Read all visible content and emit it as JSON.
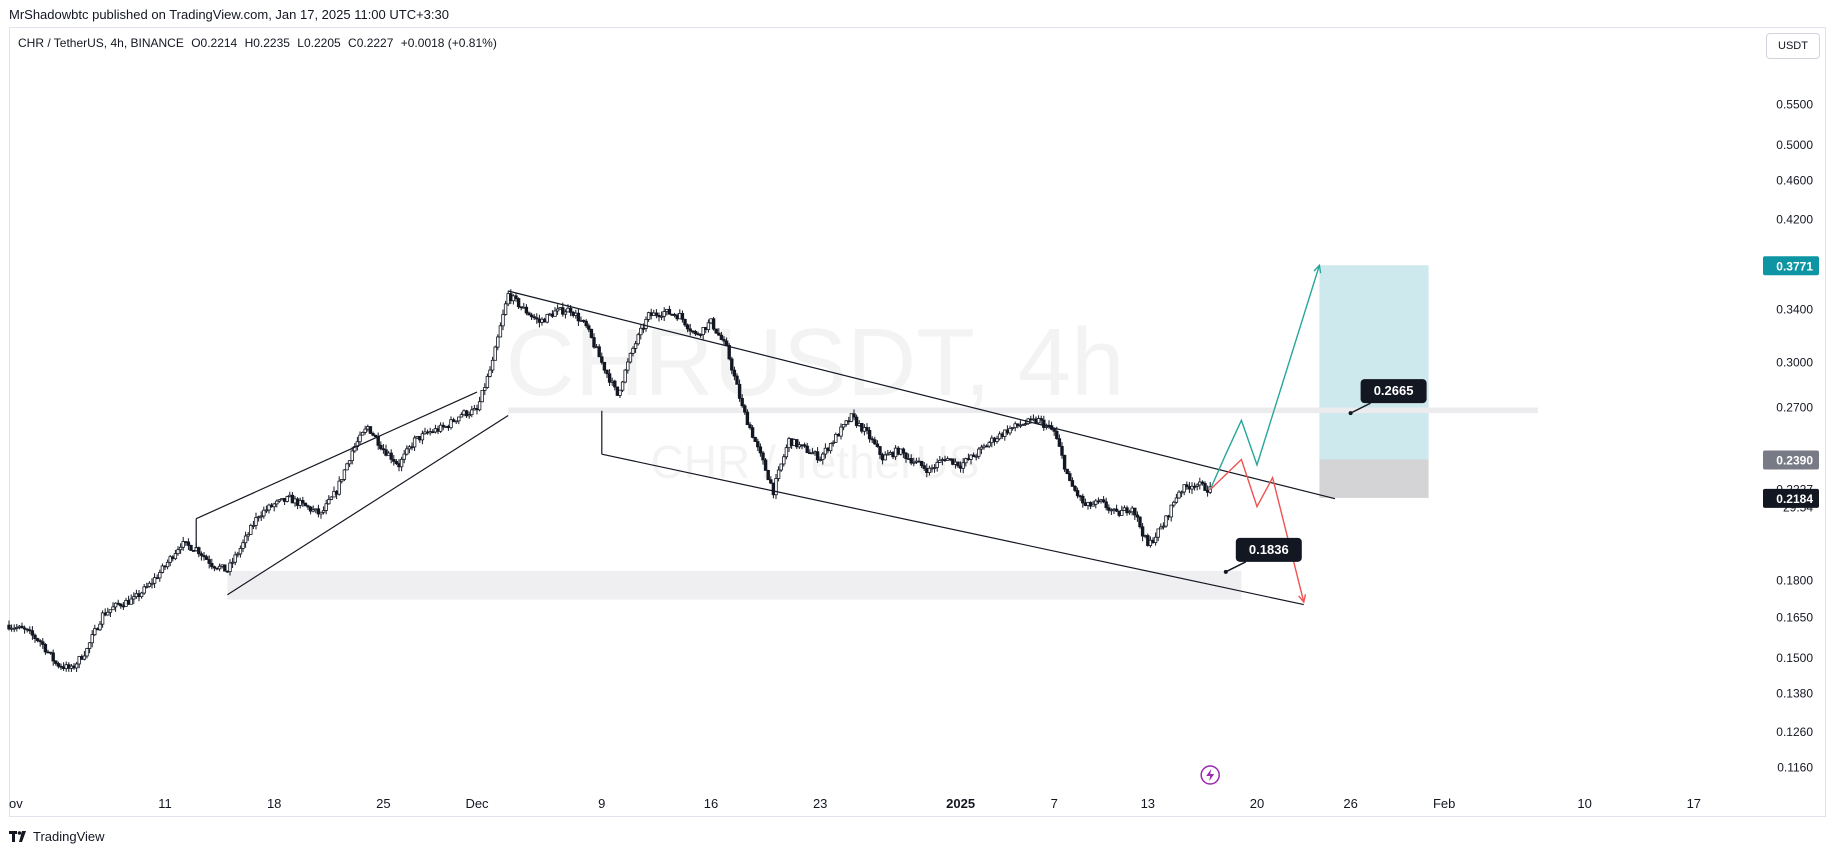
{
  "header": {
    "credit": "MrShadowbtc published on TradingView.com, Jan 17, 2025 11:00 UTC+3:30"
  },
  "legend": {
    "symbol": "CHR / TetherUS, 4h, BINANCE",
    "open": "O0.2214",
    "high": "H0.2235",
    "low": "L0.2205",
    "close": "C0.2227",
    "change": "+0.0018 (+0.81%)"
  },
  "currency_button": "USDT",
  "watermark": {
    "main": "CHRUSDT, 4h",
    "sub": "CHR / TetherUS"
  },
  "footer": {
    "brand": "TradingView"
  },
  "colors": {
    "candle": "#131722",
    "target_zone": "#cde9ee",
    "stop_zone": "#d4d4d6",
    "support_zone": "#efeff1",
    "bull_path": "#26a69a",
    "bear_path": "#f05151",
    "target_tag": "#0e95a3",
    "level_tag": "#787b86",
    "price_tag": "#131722"
  },
  "chart_data": {
    "type": "candlestick",
    "instrument": "CHR / TetherUS, 4h, BINANCE",
    "y_scale": "log",
    "ylim": [
      0.11,
      0.64
    ],
    "x_ticks": [
      {
        "label": "ov",
        "date": "2024-11-01"
      },
      {
        "label": "11",
        "date": "2024-11-11"
      },
      {
        "label": "18",
        "date": "2024-11-18"
      },
      {
        "label": "25",
        "date": "2024-11-25"
      },
      {
        "label": "Dec",
        "date": "2024-12-01"
      },
      {
        "label": "9",
        "date": "2024-12-09"
      },
      {
        "label": "16",
        "date": "2024-12-16"
      },
      {
        "label": "23",
        "date": "2024-12-23"
      },
      {
        "label": "2025",
        "date": "2025-01-01"
      },
      {
        "label": "7",
        "date": "2025-01-07"
      },
      {
        "label": "13",
        "date": "2025-01-13"
      },
      {
        "label": "20",
        "date": "2025-01-20"
      },
      {
        "label": "26",
        "date": "2025-01-26"
      },
      {
        "label": "Feb",
        "date": "2025-02-01"
      },
      {
        "label": "10",
        "date": "2025-02-10"
      },
      {
        "label": "17",
        "date": "2025-02-17"
      }
    ],
    "y_ticks": [
      "0.5500",
      "0.5000",
      "0.4600",
      "0.4200",
      "0.3400",
      "0.3000",
      "0.2700",
      "0.1800",
      "0.1650",
      "0.1500",
      "0.1380",
      "0.1260",
      "0.1160"
    ],
    "price_tags": [
      {
        "label": "0.3771",
        "value": 0.3771,
        "kind": "target"
      },
      {
        "label": "0.2390",
        "value": 0.239,
        "kind": "level"
      },
      {
        "label": "0.2227",
        "value": 0.2227,
        "kind": "last"
      },
      {
        "label": "29:54",
        "value": 0.2135,
        "kind": "countdown"
      },
      {
        "label": "0.2184",
        "value": 0.2184,
        "kind": "price"
      }
    ],
    "annotations": [
      {
        "label": "0.2665",
        "date": "2025-01-26",
        "value": 0.2665
      },
      {
        "label": "0.1836",
        "date": "2025-01-18",
        "value": 0.1836
      }
    ],
    "price_path": [
      {
        "date": "2024-11-01",
        "value": 0.162
      },
      {
        "date": "2024-11-02",
        "value": 0.16
      },
      {
        "date": "2024-11-03",
        "value": 0.156
      },
      {
        "date": "2024-11-04",
        "value": 0.148
      },
      {
        "date": "2024-11-05",
        "value": 0.146
      },
      {
        "date": "2024-11-06",
        "value": 0.153
      },
      {
        "date": "2024-11-07",
        "value": 0.166
      },
      {
        "date": "2024-11-08",
        "value": 0.17
      },
      {
        "date": "2024-11-09",
        "value": 0.172
      },
      {
        "date": "2024-11-10",
        "value": 0.178
      },
      {
        "date": "2024-11-11",
        "value": 0.186
      },
      {
        "date": "2024-11-12",
        "value": 0.196
      },
      {
        "date": "2024-11-13",
        "value": 0.194
      },
      {
        "date": "2024-11-14",
        "value": 0.187
      },
      {
        "date": "2024-11-15",
        "value": 0.184
      },
      {
        "date": "2024-11-16",
        "value": 0.196
      },
      {
        "date": "2024-11-17",
        "value": 0.21
      },
      {
        "date": "2024-11-18",
        "value": 0.215
      },
      {
        "date": "2024-11-19",
        "value": 0.218
      },
      {
        "date": "2024-11-20",
        "value": 0.214
      },
      {
        "date": "2024-11-21",
        "value": 0.21
      },
      {
        "date": "2024-11-22",
        "value": 0.222
      },
      {
        "date": "2024-11-23",
        "value": 0.244
      },
      {
        "date": "2024-11-24",
        "value": 0.258
      },
      {
        "date": "2024-11-25",
        "value": 0.245
      },
      {
        "date": "2024-11-26",
        "value": 0.236
      },
      {
        "date": "2024-11-27",
        "value": 0.25
      },
      {
        "date": "2024-11-28",
        "value": 0.255
      },
      {
        "date": "2024-11-29",
        "value": 0.258
      },
      {
        "date": "2024-11-30",
        "value": 0.266
      },
      {
        "date": "2024-12-01",
        "value": 0.268
      },
      {
        "date": "2024-12-02",
        "value": 0.3
      },
      {
        "date": "2024-12-03",
        "value": 0.352
      },
      {
        "date": "2024-12-04",
        "value": 0.34
      },
      {
        "date": "2024-12-05",
        "value": 0.33
      },
      {
        "date": "2024-12-06",
        "value": 0.338
      },
      {
        "date": "2024-12-07",
        "value": 0.34
      },
      {
        "date": "2024-12-08",
        "value": 0.326
      },
      {
        "date": "2024-12-09",
        "value": 0.3
      },
      {
        "date": "2024-12-10",
        "value": 0.278
      },
      {
        "date": "2024-12-11",
        "value": 0.31
      },
      {
        "date": "2024-12-12",
        "value": 0.335
      },
      {
        "date": "2024-12-13",
        "value": 0.338
      },
      {
        "date": "2024-12-14",
        "value": 0.335
      },
      {
        "date": "2024-12-15",
        "value": 0.32
      },
      {
        "date": "2024-12-16",
        "value": 0.33
      },
      {
        "date": "2024-12-17",
        "value": 0.31
      },
      {
        "date": "2024-12-18",
        "value": 0.27
      },
      {
        "date": "2024-12-19",
        "value": 0.245
      },
      {
        "date": "2024-12-20",
        "value": 0.222
      },
      {
        "date": "2024-12-21",
        "value": 0.25
      },
      {
        "date": "2024-12-22",
        "value": 0.245
      },
      {
        "date": "2024-12-23",
        "value": 0.24
      },
      {
        "date": "2024-12-24",
        "value": 0.252
      },
      {
        "date": "2024-12-25",
        "value": 0.264
      },
      {
        "date": "2024-12-26",
        "value": 0.254
      },
      {
        "date": "2024-12-27",
        "value": 0.24
      },
      {
        "date": "2024-12-28",
        "value": 0.244
      },
      {
        "date": "2024-12-29",
        "value": 0.238
      },
      {
        "date": "2024-12-30",
        "value": 0.233
      },
      {
        "date": "2024-12-31",
        "value": 0.24
      },
      {
        "date": "2025-01-01",
        "value": 0.236
      },
      {
        "date": "2025-01-02",
        "value": 0.242
      },
      {
        "date": "2025-01-03",
        "value": 0.25
      },
      {
        "date": "2025-01-04",
        "value": 0.256
      },
      {
        "date": "2025-01-05",
        "value": 0.26
      },
      {
        "date": "2025-01-06",
        "value": 0.262
      },
      {
        "date": "2025-01-07",
        "value": 0.255
      },
      {
        "date": "2025-01-08",
        "value": 0.226
      },
      {
        "date": "2025-01-09",
        "value": 0.214
      },
      {
        "date": "2025-01-10",
        "value": 0.216
      },
      {
        "date": "2025-01-11",
        "value": 0.21
      },
      {
        "date": "2025-01-12",
        "value": 0.214
      },
      {
        "date": "2025-01-13",
        "value": 0.195
      },
      {
        "date": "2025-01-14",
        "value": 0.205
      },
      {
        "date": "2025-01-15",
        "value": 0.222
      },
      {
        "date": "2025-01-16",
        "value": 0.226
      },
      {
        "date": "2025-01-17",
        "value": 0.2227
      }
    ],
    "trendlines": [
      {
        "role": "channel-upper",
        "from": {
          "date": "2024-12-03",
          "value": 0.355
        },
        "to": {
          "date": "2025-01-25",
          "value": 0.218
        }
      },
      {
        "role": "channel-lower",
        "from": {
          "date": "2024-12-09",
          "value": 0.242
        },
        "to": {
          "date": "2025-01-23",
          "value": 0.17
        }
      },
      {
        "role": "rising-wedge-upper",
        "from": {
          "date": "2024-11-13",
          "value": 0.208
        },
        "to": {
          "date": "2024-12-01",
          "value": 0.28
        }
      },
      {
        "role": "rising-wedge-lower",
        "from": {
          "date": "2024-11-15",
          "value": 0.174
        },
        "to": {
          "date": "2024-12-03",
          "value": 0.265
        }
      }
    ],
    "projections": [
      {
        "direction": "bullish",
        "points": [
          {
            "date": "2025-01-17",
            "value": 0.2227
          },
          {
            "date": "2025-01-18",
            "value": 0.242
          },
          {
            "date": "2025-01-19",
            "value": 0.262
          },
          {
            "date": "2025-01-20",
            "value": 0.236
          },
          {
            "date": "2025-01-24",
            "value": 0.3771
          }
        ]
      },
      {
        "direction": "bearish",
        "points": [
          {
            "date": "2025-01-17",
            "value": 0.2227
          },
          {
            "date": "2025-01-19",
            "value": 0.239
          },
          {
            "date": "2025-01-20",
            "value": 0.214
          },
          {
            "date": "2025-01-21",
            "value": 0.229
          },
          {
            "date": "2025-01-23",
            "value": 0.171
          }
        ]
      }
    ],
    "zones": [
      {
        "role": "target",
        "date_from": "2025-01-24",
        "date_to": "2025-01-31",
        "value_from": 0.239,
        "value_to": 0.3771
      },
      {
        "role": "stop",
        "date_from": "2025-01-24",
        "date_to": "2025-01-31",
        "value_from": 0.2184,
        "value_to": 0.239
      },
      {
        "role": "support",
        "date_from": "2024-11-15",
        "date_to": "2025-01-19",
        "value_from": 0.172,
        "value_to": 0.184
      },
      {
        "role": "resistance-line",
        "date_from": "2024-12-03",
        "date_to": "2025-01-30",
        "value_from": 0.2665,
        "value_to": 0.27
      }
    ],
    "grid": false,
    "legend_position": "top-left"
  }
}
